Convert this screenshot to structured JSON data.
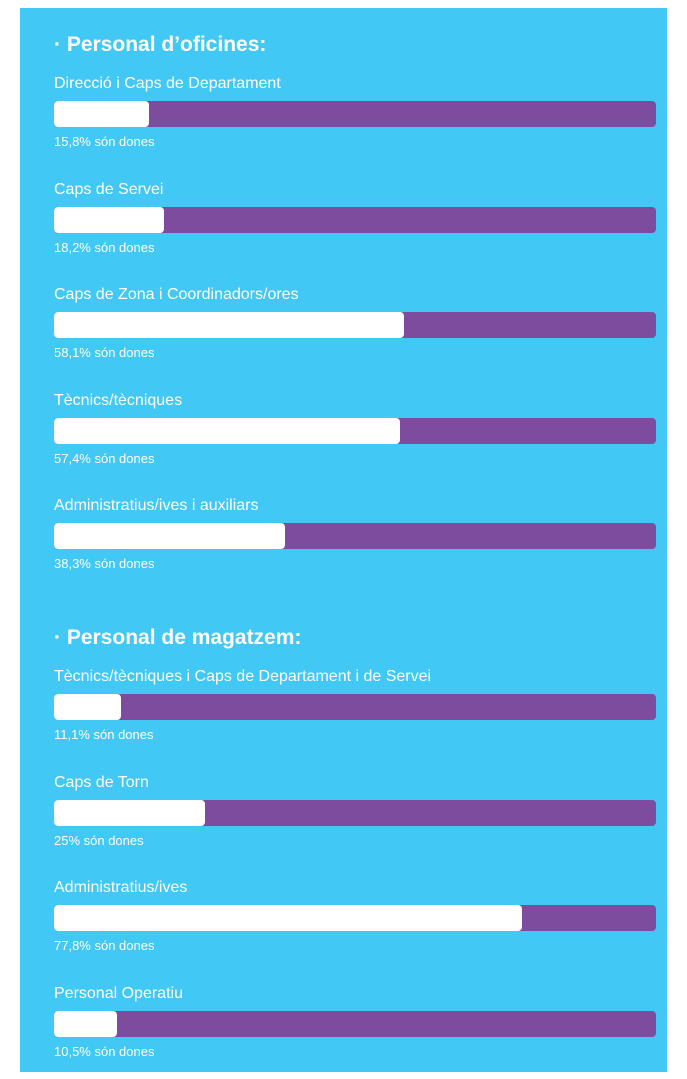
{
  "sections": [
    {
      "title": "· Personal d’oficines:",
      "items": [
        {
          "label": "Direcció i Caps de Departament",
          "value": 15.8,
          "value_label": "15,8% són dones"
        },
        {
          "label": "Caps de Servei",
          "value": 18.2,
          "value_label": "18,2% són dones"
        },
        {
          "label": "Caps de Zona i Coordinadors/ores",
          "value": 58.1,
          "value_label": "58,1% són dones"
        },
        {
          "label": "Tècnics/tècniques",
          "value": 57.4,
          "value_label": "57,4% són dones"
        },
        {
          "label": "Administratius/ives i auxiliars",
          "value": 38.3,
          "value_label": "38,3% són dones"
        }
      ]
    },
    {
      "title": "· Personal de magatzem:",
      "items": [
        {
          "label": "Tècnics/tècniques i Caps de Departament i de Servei",
          "value": 11.1,
          "value_label": "11,1% són dones"
        },
        {
          "label": "Caps de Torn",
          "value": 25,
          "value_label": "25% són dones"
        },
        {
          "label": "Administratius/ives",
          "value": 77.8,
          "value_label": "77,8% són dones"
        },
        {
          "label": "Personal Operatiu",
          "value": 10.5,
          "value_label": "10,5% són dones"
        }
      ]
    }
  ]
}
